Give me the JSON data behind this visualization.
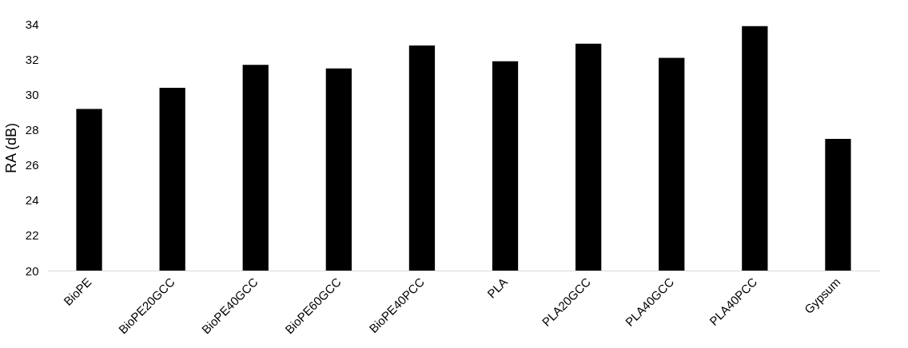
{
  "chart_data": {
    "type": "bar",
    "ylabel": "RA (dB)",
    "categories": [
      "BioPE",
      "BioPE20GCC",
      "BioPE40GCC",
      "BioPE60GCC",
      "BioPE40PCC",
      "PLA",
      "PLA20GCC",
      "PLA40GCC",
      "PLA40PCC",
      "Gypsum"
    ],
    "values": [
      29.2,
      30.4,
      31.7,
      31.5,
      32.8,
      31.9,
      32.9,
      32.1,
      33.9,
      27.5
    ],
    "color": "#000000",
    "ylim": [
      20,
      34
    ],
    "yticks": [
      20,
      22,
      24,
      26,
      28,
      30,
      32,
      34
    ],
    "grid": false
  }
}
